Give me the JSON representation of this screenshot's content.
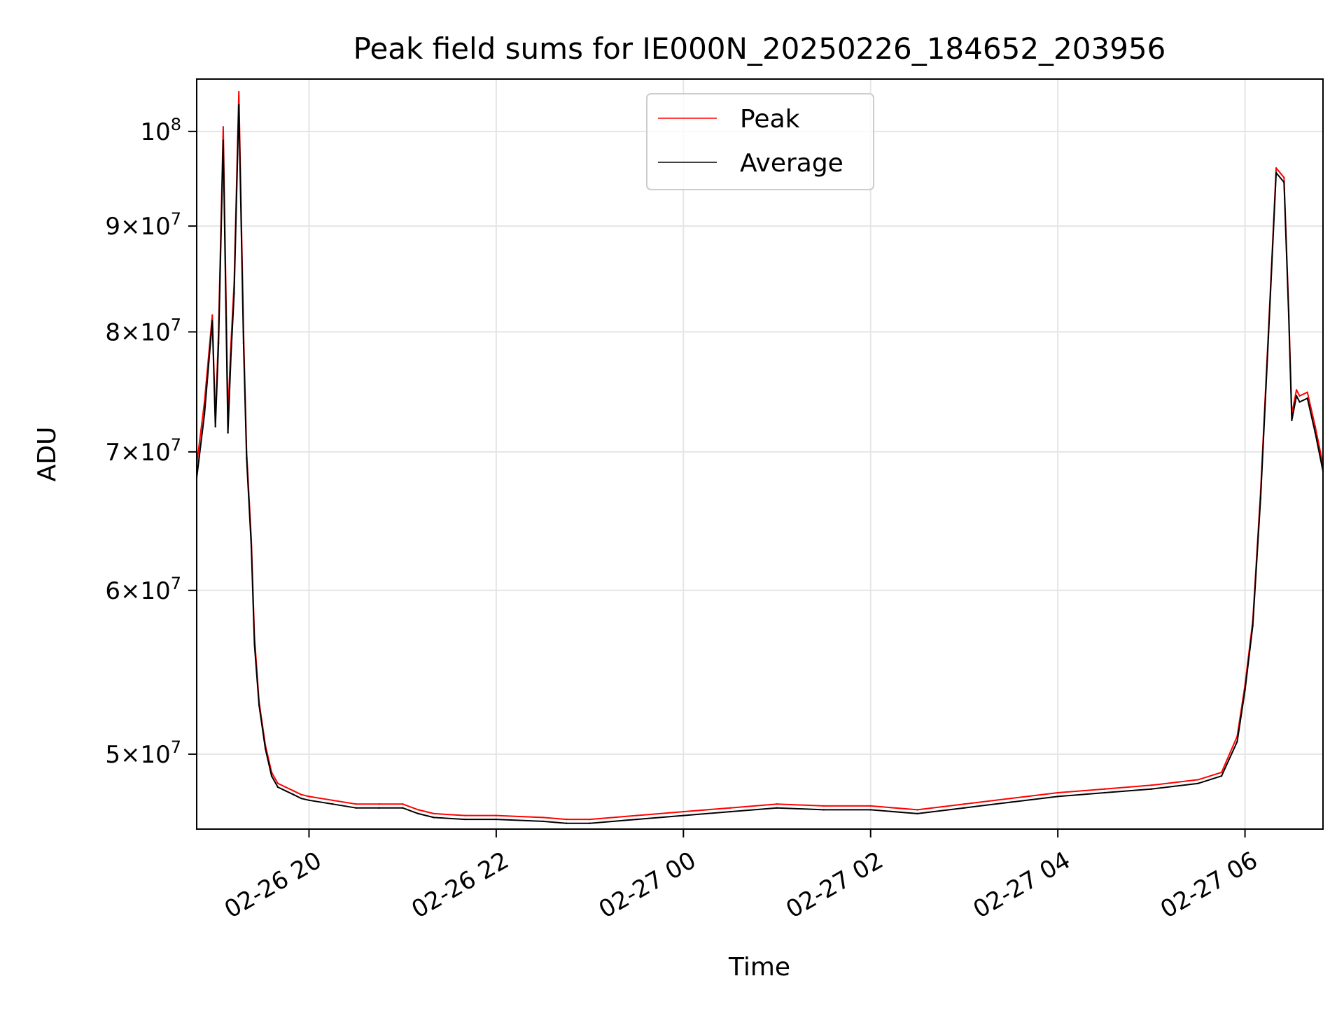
{
  "chart_data": {
    "type": "line",
    "title": "Peak field sums for IE000N_20250226_184652_203956",
    "xlabel": "Time",
    "ylabel": "ADU",
    "y_scale": "log",
    "ylim": [
      46000000,
      106000000
    ],
    "xlim": [
      "02-26 18:48",
      "02-27 06:50"
    ],
    "grid": true,
    "legend": {
      "placement": "top-center",
      "entries": [
        "Peak",
        "Average"
      ]
    },
    "x_ticks": [
      {
        "value": "02-26 20:00",
        "label": "02-26 20"
      },
      {
        "value": "02-26 22:00",
        "label": "02-26 22"
      },
      {
        "value": "02-27 00:00",
        "label": "02-27 00"
      },
      {
        "value": "02-27 02:00",
        "label": "02-27 02"
      },
      {
        "value": "02-27 04:00",
        "label": "02-27 04"
      },
      {
        "value": "02-27 06:00",
        "label": "02-27 06"
      }
    ],
    "y_ticks": [
      {
        "value": 50000000,
        "mantissa": "5",
        "exponent": "7"
      },
      {
        "value": 60000000,
        "mantissa": "6",
        "exponent": "7"
      },
      {
        "value": 70000000,
        "mantissa": "7",
        "exponent": "7"
      },
      {
        "value": 80000000,
        "mantissa": "8",
        "exponent": "7"
      },
      {
        "value": 90000000,
        "mantissa": "9",
        "exponent": "7"
      },
      {
        "value": 100000000,
        "mantissa": "",
        "exponent": "8"
      }
    ],
    "series": [
      {
        "name": "Peak",
        "color": "#ff0000",
        "x": [
          "02-26 18:48",
          "02-26 18:53",
          "02-26 18:58",
          "02-26 19:00",
          "02-26 19:02",
          "02-26 19:05",
          "02-26 19:08",
          "02-26 19:10",
          "02-26 19:12",
          "02-26 19:15",
          "02-26 19:18",
          "02-26 19:20",
          "02-26 19:23",
          "02-26 19:25",
          "02-26 19:28",
          "02-26 19:32",
          "02-26 19:36",
          "02-26 19:40",
          "02-26 19:45",
          "02-26 19:50",
          "02-26 19:55",
          "02-26 20:00",
          "02-26 20:15",
          "02-26 20:30",
          "02-26 20:45",
          "02-26 21:00",
          "02-26 21:10",
          "02-26 21:20",
          "02-26 21:40",
          "02-26 22:00",
          "02-26 22:30",
          "02-26 22:45",
          "02-26 23:00",
          "02-26 23:30",
          "02-27 00:00",
          "02-27 00:30",
          "02-27 01:00",
          "02-27 01:30",
          "02-27 02:00",
          "02-27 02:30",
          "02-27 03:00",
          "02-27 03:30",
          "02-27 04:00",
          "02-27 04:30",
          "02-27 05:00",
          "02-27 05:30",
          "02-27 05:45",
          "02-27 05:55",
          "02-27 06:00",
          "02-27 06:05",
          "02-27 06:10",
          "02-27 06:15",
          "02-27 06:20",
          "02-27 06:25",
          "02-27 06:28",
          "02-27 06:30",
          "02-27 06:33",
          "02-27 06:35",
          "02-27 06:40",
          "02-27 06:45",
          "02-27 06:50"
        ],
        "values": [
          69000000,
          74000000,
          81500000,
          72500000,
          80000000,
          100500000,
          73000000,
          79000000,
          84500000,
          104500000,
          80000000,
          70000000,
          63500000,
          57000000,
          53000000,
          50500000,
          49000000,
          48400000,
          48200000,
          48000000,
          47800000,
          47700000,
          47500000,
          47300000,
          47300000,
          47300000,
          47000000,
          46800000,
          46700000,
          46700000,
          46600000,
          46500000,
          46500000,
          46700000,
          46900000,
          47100000,
          47300000,
          47200000,
          47200000,
          47000000,
          47300000,
          47600000,
          47900000,
          48100000,
          48300000,
          48600000,
          49000000,
          51000000,
          54000000,
          58000000,
          67000000,
          80000000,
          96000000,
          95000000,
          82000000,
          73000000,
          75000000,
          74500000,
          74800000,
          72000000,
          69000000
        ]
      },
      {
        "name": "Average",
        "color": "#000000",
        "x": [
          "02-26 18:48",
          "02-26 18:53",
          "02-26 18:58",
          "02-26 19:00",
          "02-26 19:02",
          "02-26 19:05",
          "02-26 19:08",
          "02-26 19:10",
          "02-26 19:12",
          "02-26 19:15",
          "02-26 19:18",
          "02-26 19:20",
          "02-26 19:23",
          "02-26 19:25",
          "02-26 19:28",
          "02-26 19:32",
          "02-26 19:36",
          "02-26 19:40",
          "02-26 19:45",
          "02-26 19:50",
          "02-26 19:55",
          "02-26 20:00",
          "02-26 20:15",
          "02-26 20:30",
          "02-26 20:45",
          "02-26 21:00",
          "02-26 21:10",
          "02-26 21:20",
          "02-26 21:40",
          "02-26 22:00",
          "02-26 22:30",
          "02-26 22:45",
          "02-26 23:00",
          "02-26 23:30",
          "02-27 00:00",
          "02-27 00:30",
          "02-27 01:00",
          "02-27 01:30",
          "02-27 02:00",
          "02-27 02:30",
          "02-27 03:00",
          "02-27 03:30",
          "02-27 04:00",
          "02-27 04:30",
          "02-27 05:00",
          "02-27 05:30",
          "02-27 05:45",
          "02-27 05:55",
          "02-27 06:00",
          "02-27 06:05",
          "02-27 06:10",
          "02-27 06:15",
          "02-27 06:20",
          "02-27 06:25",
          "02-27 06:28",
          "02-27 06:30",
          "02-27 06:33",
          "02-27 06:35",
          "02-27 06:40",
          "02-27 06:45",
          "02-27 06:50"
        ],
        "values": [
          68000000,
          73000000,
          81000000,
          72000000,
          79000000,
          99000000,
          71500000,
          78000000,
          83500000,
          103000000,
          79000000,
          69500000,
          63000000,
          56500000,
          52800000,
          50300000,
          48800000,
          48200000,
          48000000,
          47800000,
          47600000,
          47500000,
          47300000,
          47100000,
          47100000,
          47100000,
          46800000,
          46600000,
          46500000,
          46500000,
          46400000,
          46300000,
          46300000,
          46500000,
          46700000,
          46900000,
          47100000,
          47000000,
          47000000,
          46800000,
          47100000,
          47400000,
          47700000,
          47900000,
          48100000,
          48400000,
          48800000,
          50700000,
          53700000,
          57700000,
          66500000,
          79500000,
          95500000,
          94500000,
          81500000,
          72500000,
          74500000,
          74000000,
          74300000,
          71500000,
          68500000
        ]
      }
    ]
  }
}
